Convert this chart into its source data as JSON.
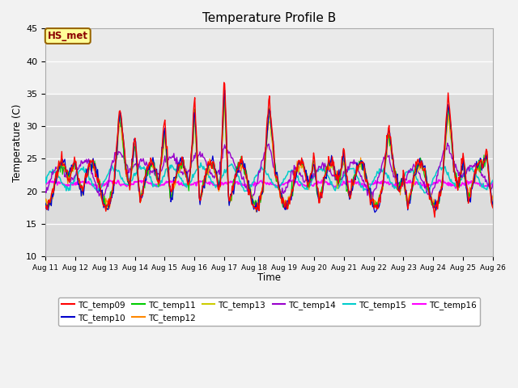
{
  "title": "Temperature Profile B",
  "xlabel": "Time",
  "ylabel": "Temperature (C)",
  "ylim": [
    10,
    45
  ],
  "xlim": [
    0,
    15
  ],
  "annotation": "HS_met",
  "annotation_color": "#8B0000",
  "annotation_bg": "#FFFF99",
  "annotation_border": "#996600",
  "x_tick_labels": [
    "Aug 11",
    "Aug 12",
    "Aug 13",
    "Aug 14",
    "Aug 15",
    "Aug 16",
    "Aug 17",
    "Aug 18",
    "Aug 19",
    "Aug 20",
    "Aug 21",
    "Aug 22",
    "Aug 23",
    "Aug 24",
    "Aug 25",
    "Aug 26"
  ],
  "series_colors": {
    "TC_temp09": "#FF0000",
    "TC_temp10": "#0000CC",
    "TC_temp11": "#00CC00",
    "TC_temp12": "#FF8800",
    "TC_temp13": "#CCCC00",
    "TC_temp14": "#9900CC",
    "TC_temp15": "#00CCCC",
    "TC_temp16": "#FF00FF"
  },
  "plot_bg_lower": "#DCDCDC",
  "plot_bg_upper": "#F0F0F0",
  "grid_color": "#FFFFFF",
  "fig_bg": "#F2F2F2",
  "n_points": 600,
  "days": 15
}
